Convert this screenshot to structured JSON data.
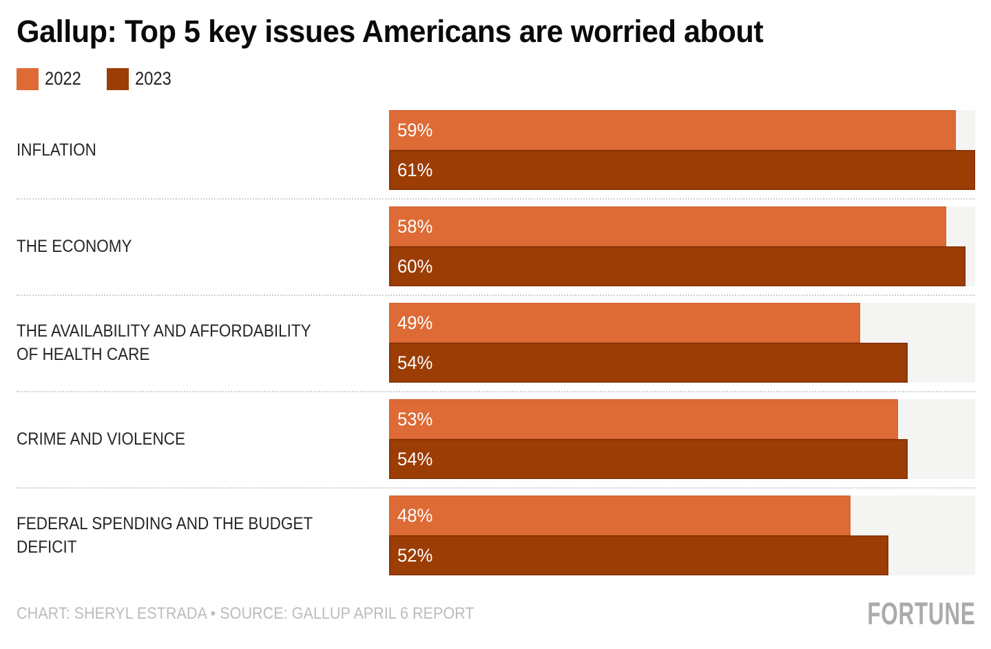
{
  "title": "Gallup: Top 5 key issues Americans are worried about",
  "colors": {
    "series_2022": "#de6a35",
    "series_2023": "#9c3d05",
    "track_background": "#f4f4f3",
    "separator": "#cfcfcf",
    "footer_text": "#bcbcbc",
    "brand_text": "#ababab"
  },
  "chart_data": {
    "type": "bar",
    "orientation": "horizontal",
    "title": "Gallup: Top 5 key issues Americans are worried about",
    "categories": [
      "INFLATION",
      "THE ECONOMY",
      "THE AVAILABILITY AND AFFORDABILITY OF HEALTH CARE",
      "CRIME AND VIOLENCE",
      "FEDERAL SPENDING AND THE BUDGET DEFICIT"
    ],
    "series": [
      {
        "name": "2022",
        "color": "#de6a35",
        "values": [
          59,
          58,
          49,
          53,
          48
        ]
      },
      {
        "name": "2023",
        "color": "#9c3d05",
        "values": [
          61,
          60,
          54,
          54,
          52
        ]
      }
    ],
    "value_suffix": "%",
    "xlim": [
      0,
      61
    ],
    "grid": false,
    "legend_position": "top-left",
    "data_labels": "inside-left"
  },
  "footer": {
    "credits": "CHART: SHERYL ESTRADA • SOURCE: GALLUP APRIL 6 REPORT",
    "brand": "FORTUNE"
  }
}
